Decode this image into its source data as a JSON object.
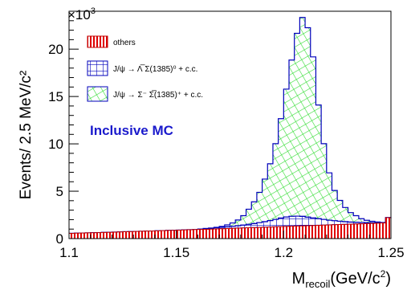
{
  "chart_data": {
    "type": "area",
    "ylabel": "Events/ 2.5 MeV/c²",
    "xlabel_main": "M",
    "xlabel_sub": "recoil",
    "xlabel_rest": "(GeV/c",
    "xlabel_sup": "2",
    "xlabel_end": ")",
    "y_multiplier": "×10",
    "y_multiplier_exp": "3",
    "annotation": "Inclusive MC",
    "xlim": [
      1.1,
      1.25
    ],
    "ylim": [
      0,
      24
    ],
    "x_ticks": [
      {
        "v": 1.1,
        "label": "1.1"
      },
      {
        "v": 1.15,
        "label": "1.15"
      },
      {
        "v": 1.2,
        "label": "1.2"
      },
      {
        "v": 1.25,
        "label": "1.25"
      }
    ],
    "y_ticks": [
      {
        "v": 0,
        "label": "0"
      },
      {
        "v": 5,
        "label": "5"
      },
      {
        "v": 10,
        "label": "10"
      },
      {
        "v": 15,
        "label": "15"
      },
      {
        "v": 20,
        "label": "20"
      }
    ],
    "legend": [
      {
        "name": "others",
        "style": "red-vertical-hatch"
      },
      {
        "name": "J/ψ → Λ̅ Σ(1385)⁰ + c.c.",
        "style": "blue-grid-hatch"
      },
      {
        "name": "J/ψ → Σ⁻ Σ̅(1385)⁺ + c.c.",
        "style": "green-grid-hatch"
      }
    ],
    "colors": {
      "others": "#e00000",
      "lambda_sigma0": "#0000bb",
      "sigma_sigmastar": "#33dd33",
      "annotation": "#1a1acc"
    },
    "bin_width": 0.0025,
    "bin_start": 1.1,
    "series": [
      {
        "name": "others",
        "values": [
          0.55,
          0.57,
          0.58,
          0.6,
          0.62,
          0.63,
          0.65,
          0.66,
          0.68,
          0.7,
          0.72,
          0.73,
          0.75,
          0.77,
          0.79,
          0.8,
          0.82,
          0.84,
          0.86,
          0.87,
          0.89,
          0.91,
          0.93,
          0.95,
          0.96,
          0.98,
          1.0,
          1.02,
          1.04,
          1.06,
          1.08,
          1.1,
          1.12,
          1.14,
          1.16,
          1.18,
          1.2,
          1.22,
          1.24,
          1.26,
          1.28,
          1.3,
          1.32,
          1.34,
          1.36,
          1.38,
          1.4,
          1.42,
          1.44,
          1.46,
          1.48,
          1.5,
          1.52,
          1.54,
          1.56,
          1.58,
          1.6,
          1.62,
          1.64,
          2.2
        ]
      },
      {
        "name": "J/ψ → Λ̅ Σ(1385)⁰ + c.c.",
        "values": [
          0,
          0,
          0,
          0,
          0,
          0,
          0,
          0,
          0,
          0,
          0,
          0,
          0,
          0,
          0,
          0,
          0,
          0,
          0,
          0,
          0,
          0,
          0,
          0,
          0.05,
          0.08,
          0.1,
          0.12,
          0.15,
          0.18,
          0.22,
          0.26,
          0.3,
          0.36,
          0.42,
          0.5,
          0.58,
          0.68,
          0.78,
          0.9,
          1.0,
          1.05,
          1.05,
          1.0,
          0.9,
          0.8,
          0.7,
          0.6,
          0.5,
          0.42,
          0.35,
          0.28,
          0.22,
          0.18,
          0.14,
          0.1,
          0.08,
          0.05,
          0.03,
          0.02
        ]
      },
      {
        "name": "J/ψ → Σ⁻ Σ̅(1385)⁺ + c.c.",
        "values": [
          0,
          0,
          0,
          0,
          0,
          0,
          0,
          0,
          0,
          0,
          0,
          0,
          0,
          0,
          0,
          0,
          0,
          0,
          0,
          0,
          0,
          0,
          0,
          0,
          0,
          0,
          0,
          0.05,
          0.1,
          0.2,
          0.35,
          0.6,
          1.0,
          1.6,
          2.3,
          3.2,
          4.5,
          6.0,
          8.0,
          10.5,
          13.5,
          16.5,
          19.3,
          21.0,
          20.0,
          17.0,
          12.0,
          8.0,
          5.0,
          3.2,
          2.2,
          1.5,
          1.0,
          0.7,
          0.4,
          0.25,
          0.15,
          0.08,
          0.03,
          0.0
        ]
      }
    ]
  }
}
